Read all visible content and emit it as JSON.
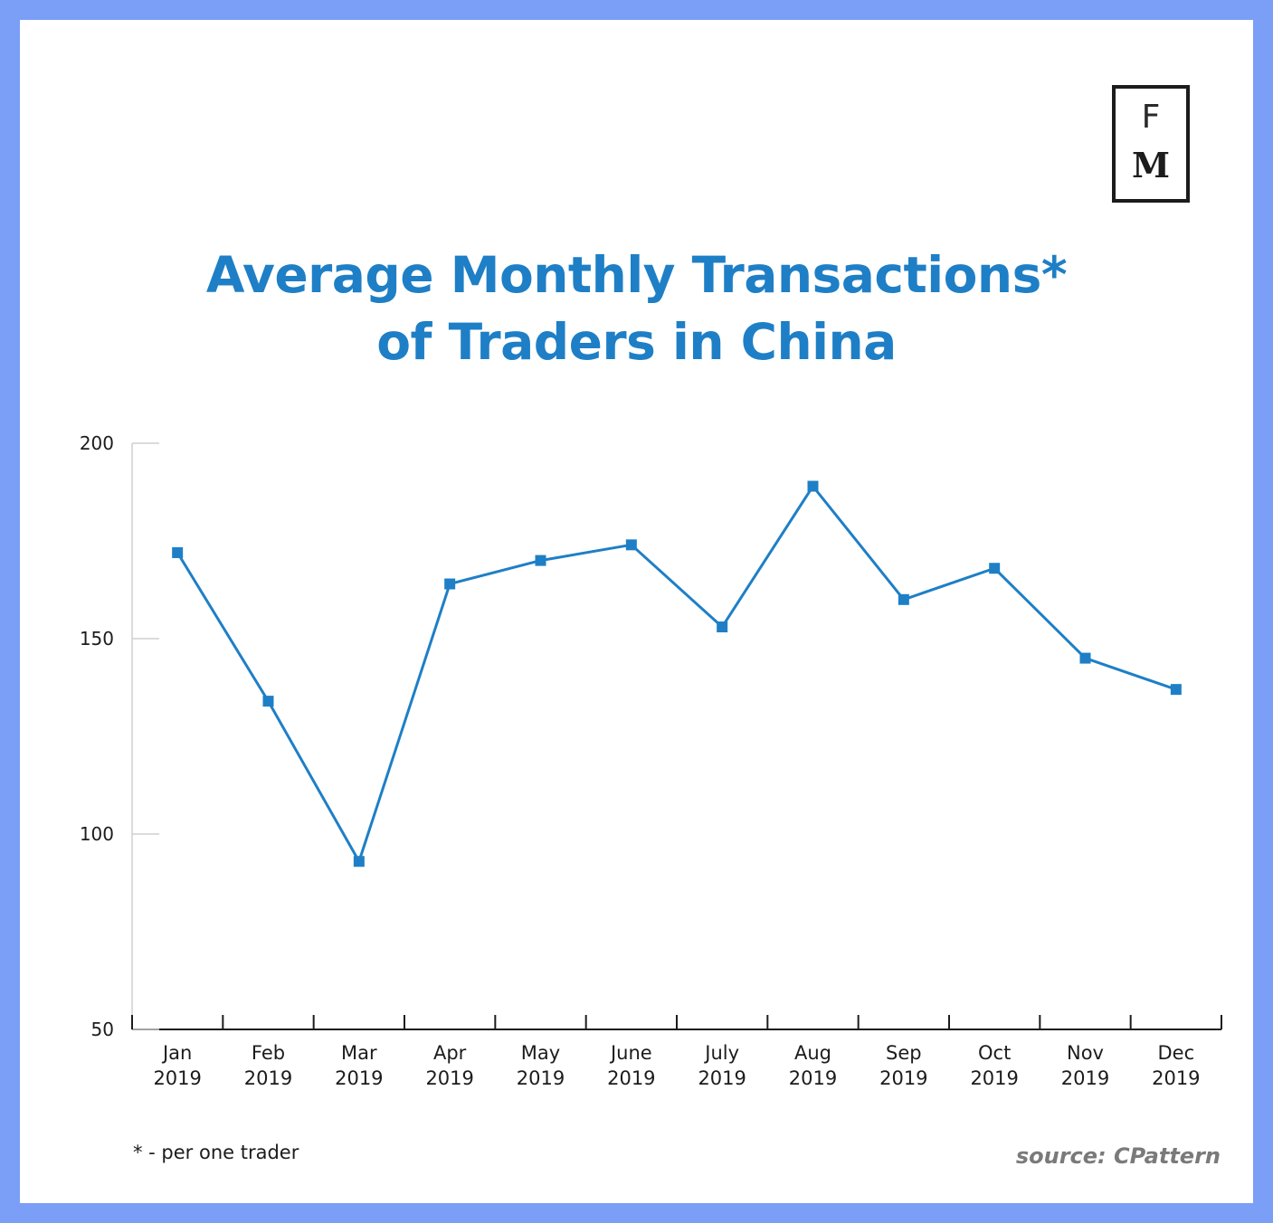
{
  "logo": {
    "top_letter": "F",
    "bottom_letter": "M"
  },
  "footnote": "* - per one trader",
  "source": "source: CPattern",
  "colors": {
    "line": "#1e7fc6",
    "title": "#1e7fc6",
    "axis": "#1c1c1c",
    "frame": "#7b9ef7"
  },
  "chart_data": {
    "type": "line",
    "title_lines": [
      "Average Monthly Transactions*",
      "of Traders in China"
    ],
    "xlabel": "",
    "ylabel": "",
    "ylim": [
      50,
      200
    ],
    "yticks": [
      50,
      100,
      150,
      200
    ],
    "grid": false,
    "categories": [
      [
        "Jan",
        "2019"
      ],
      [
        "Feb",
        "2019"
      ],
      [
        "Mar",
        "2019"
      ],
      [
        "Apr",
        "2019"
      ],
      [
        "May",
        "2019"
      ],
      [
        "June",
        "2019"
      ],
      [
        "July",
        "2019"
      ],
      [
        "Aug",
        "2019"
      ],
      [
        "Sep",
        "2019"
      ],
      [
        "Oct",
        "2019"
      ],
      [
        "Nov",
        "2019"
      ],
      [
        "Dec",
        "2019"
      ]
    ],
    "series": [
      {
        "values": [
          172,
          134,
          93,
          164,
          170,
          174,
          153,
          189,
          160,
          168,
          145,
          137
        ]
      }
    ]
  }
}
